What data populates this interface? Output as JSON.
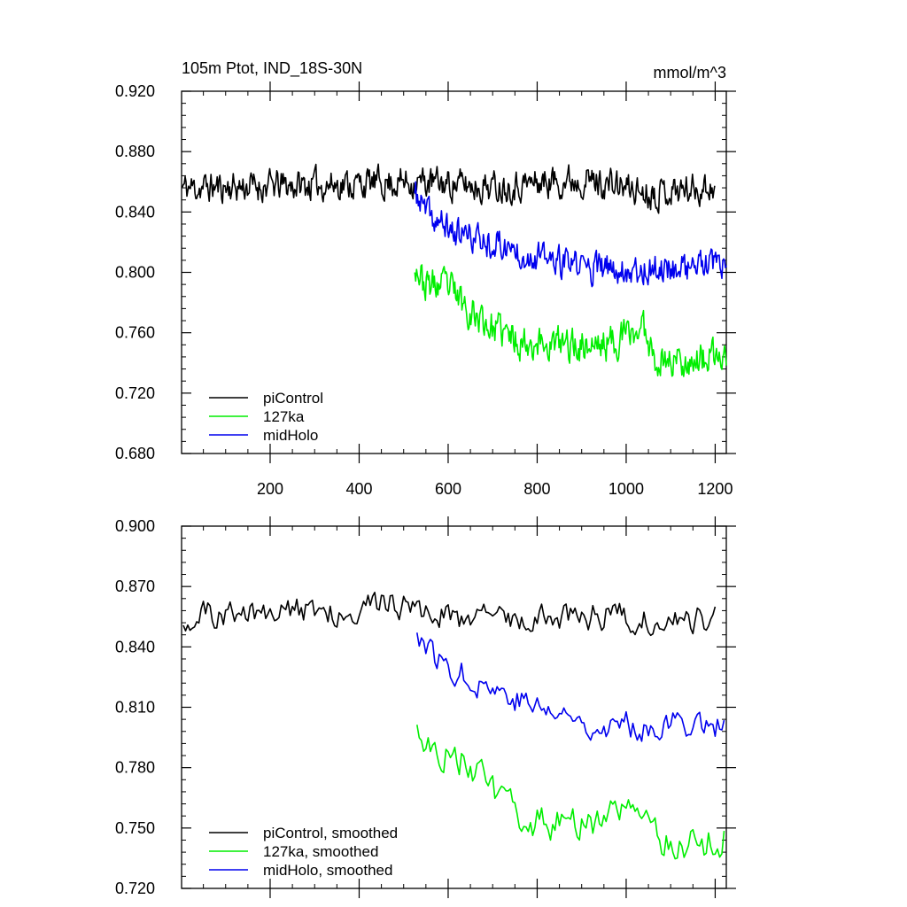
{
  "figure": {
    "title_left": "105m Ptot, IND_18S-30N",
    "title_right": "mmol/m^3"
  },
  "chart_data": [
    {
      "type": "line",
      "name": "raw",
      "xlim": [
        1,
        1225
      ],
      "ylim": [
        0.68,
        0.92
      ],
      "x_ticks": [
        200,
        400,
        600,
        800,
        1000,
        1200
      ],
      "x_tick_labels": [
        "200",
        "400",
        "600",
        "800",
        "1000",
        "1200"
      ],
      "y_ticks": [
        0.68,
        0.72,
        0.76,
        0.8,
        0.84,
        0.88,
        0.92
      ],
      "y_tick_labels": [
        "0.680",
        "0.720",
        "0.760",
        "0.800",
        "0.840",
        "0.880",
        "0.920"
      ],
      "series": [
        {
          "name": "piControl",
          "color": "#000000",
          "x_start": 1,
          "x_end": 1200,
          "step": 2,
          "baseline": [
            [
              1,
              0.856
            ],
            [
              300,
              0.858
            ],
            [
              520,
              0.86
            ],
            [
              700,
              0.857
            ],
            [
              900,
              0.862
            ],
            [
              1050,
              0.853
            ],
            [
              1200,
              0.857
            ]
          ],
          "noise": 0.016,
          "seed": 11
        },
        {
          "name": "127ka",
          "color": "#00ee00",
          "x_start": 525,
          "x_end": 1225,
          "step": 2,
          "baseline": [
            [
              525,
              0.808
            ],
            [
              545,
              0.792
            ],
            [
              600,
              0.79
            ],
            [
              650,
              0.775
            ],
            [
              700,
              0.763
            ],
            [
              760,
              0.755
            ],
            [
              850,
              0.752
            ],
            [
              950,
              0.752
            ],
            [
              1040,
              0.763
            ],
            [
              1070,
              0.742
            ],
            [
              1150,
              0.742
            ],
            [
              1225,
              0.743
            ]
          ],
          "noise": 0.018,
          "seed": 23
        },
        {
          "name": "midHolo",
          "color": "#0000ee",
          "x_start": 525,
          "x_end": 1225,
          "step": 2,
          "baseline": [
            [
              525,
              0.852
            ],
            [
              560,
              0.836
            ],
            [
              620,
              0.826
            ],
            [
              700,
              0.82
            ],
            [
              780,
              0.812
            ],
            [
              850,
              0.806
            ],
            [
              950,
              0.802
            ],
            [
              1050,
              0.802
            ],
            [
              1150,
              0.804
            ],
            [
              1225,
              0.803
            ]
          ],
          "noise": 0.016,
          "seed": 37
        }
      ],
      "legend": {
        "position": "bottom-left",
        "entries": [
          {
            "label": "piControl",
            "color": "#000000"
          },
          {
            "label": "127ka",
            "color": "#00ee00"
          },
          {
            "label": "midHolo",
            "color": "#0000ee"
          }
        ]
      }
    },
    {
      "type": "line",
      "name": "smoothed",
      "xlim": [
        1,
        1225
      ],
      "ylim": [
        0.72,
        0.9
      ],
      "x_ticks": [
        200,
        400,
        600,
        800,
        1000,
        1200
      ],
      "x_tick_labels": [],
      "y_ticks": [
        0.72,
        0.75,
        0.78,
        0.81,
        0.84,
        0.87,
        0.9
      ],
      "y_tick_labels": [
        "0.720",
        "0.750",
        "0.780",
        "0.810",
        "0.840",
        "0.870",
        "0.900"
      ],
      "series": [
        {
          "name": "piControl, smoothed",
          "color": "#000000",
          "x_start": 5,
          "x_end": 1200,
          "step": 5,
          "baseline": [
            [
              5,
              0.855
            ],
            [
              300,
              0.858
            ],
            [
              520,
              0.862
            ],
            [
              560,
              0.855
            ],
            [
              700,
              0.855
            ],
            [
              880,
              0.855
            ],
            [
              960,
              0.856
            ],
            [
              1050,
              0.853
            ],
            [
              1200,
              0.855
            ]
          ],
          "noise": 0.011,
          "seed": 51
        },
        {
          "name": "127ka, smoothed",
          "color": "#00ee00",
          "x_start": 530,
          "x_end": 1222,
          "step": 5,
          "baseline": [
            [
              530,
              0.805
            ],
            [
              560,
              0.79
            ],
            [
              600,
              0.788
            ],
            [
              650,
              0.782
            ],
            [
              700,
              0.766
            ],
            [
              760,
              0.755
            ],
            [
              850,
              0.752
            ],
            [
              950,
              0.752
            ],
            [
              1040,
              0.765
            ],
            [
              1070,
              0.745
            ],
            [
              1150,
              0.741
            ],
            [
              1222,
              0.745
            ]
          ],
          "noise": 0.013,
          "seed": 63
        },
        {
          "name": "midHolo, smoothed",
          "color": "#0000ee",
          "x_start": 530,
          "x_end": 1222,
          "step": 5,
          "baseline": [
            [
              530,
              0.848
            ],
            [
              570,
              0.835
            ],
            [
              620,
              0.828
            ],
            [
              700,
              0.82
            ],
            [
              780,
              0.812
            ],
            [
              850,
              0.806
            ],
            [
              950,
              0.801
            ],
            [
              1050,
              0.801
            ],
            [
              1150,
              0.803
            ],
            [
              1222,
              0.801
            ]
          ],
          "noise": 0.011,
          "seed": 77
        }
      ],
      "legend": {
        "position": "bottom-left",
        "entries": [
          {
            "label": "piControl, smoothed",
            "color": "#000000"
          },
          {
            "label": "127ka, smoothed",
            "color": "#00ee00"
          },
          {
            "label": "midHolo, smoothed",
            "color": "#0000ee"
          }
        ]
      }
    }
  ]
}
